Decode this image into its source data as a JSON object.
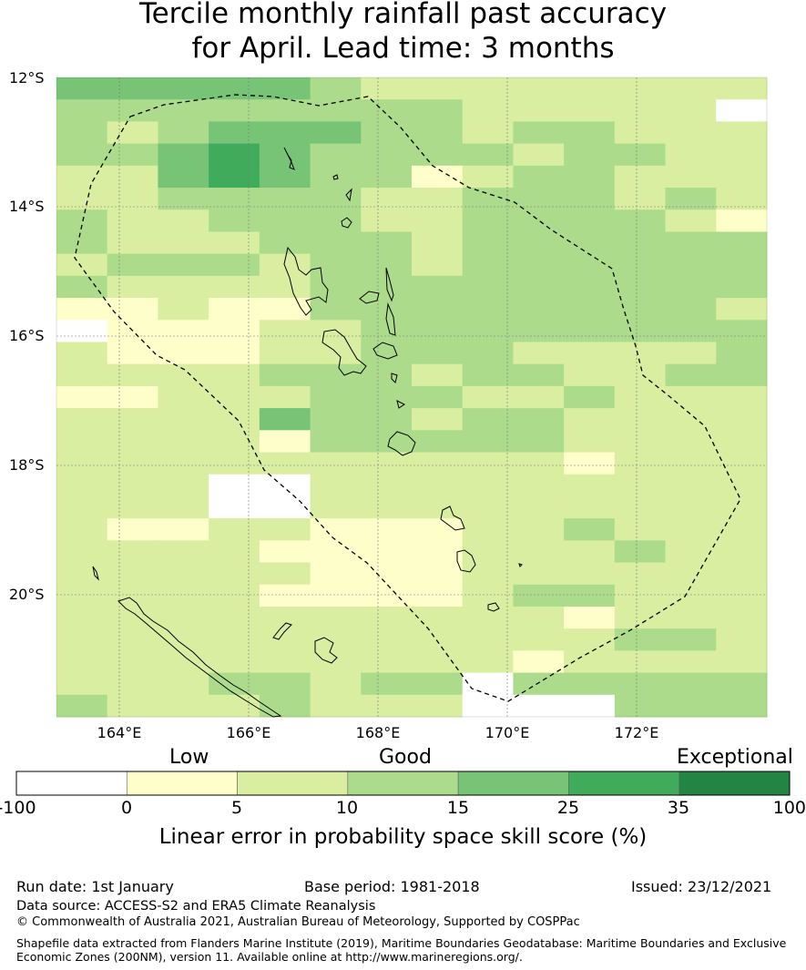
{
  "title": {
    "line1": "Tercile monthly rainfall past accuracy",
    "line2": "for April. Lead time: 3 months"
  },
  "map": {
    "lat_labels": [
      "12°S",
      "14°S",
      "16°S",
      "18°S",
      "20°S"
    ],
    "lon_labels": [
      "164°E",
      "166°E",
      "168°E",
      "170°E",
      "172°E"
    ],
    "lon_range": [
      163,
      174
    ],
    "lat_range": [
      -12,
      -21.9
    ],
    "eez_boundary": "Vanuatu EEZ",
    "grid_classes": [
      "44444322222222",
      "33333333222220",
      "32344433233222",
      "33454333323322",
      "22454331233222",
      "22333322333232",
      "32233322333321",
      "32223332333333",
      "23332332333333",
      "32222333333333",
      "11211333333332",
      "01112233333333",
      "21112233322223",
      "22223332332233",
      "11222333223222",
      "22224332332222",
      "22221333332222",
      "22222222221222",
      "22200222222222",
      "22200222222222",
      "21122111223222",
      "22221111222322",
      "22222111222222",
      "22221111233222",
      "22222222221222",
      "22222222222332",
      "22222222212222",
      "22233233033333",
      "32223222000333"
    ]
  },
  "colorbar": {
    "categories": [
      "Low",
      "Good",
      "Exceptional"
    ],
    "ticks": [
      "-100",
      "0",
      "5",
      "10",
      "15",
      "25",
      "35",
      "100"
    ],
    "colors": [
      "#ffffff",
      "#fefecb",
      "#d9eea0",
      "#acdc8b",
      "#77c476",
      "#41ab5c",
      "#238443"
    ],
    "title": "Linear error in probability space skill score (%)"
  },
  "footer": {
    "run_date": "Run date: 1st January",
    "base_period": "Base period: 1981-2018",
    "issued": "Issued: 23/12/2021",
    "data_source": "Data source: ACCESS-S2 and ERA5 Climate Reanalysis",
    "copyright": "© Commonwealth of Australia 2021, Australian Bureau of Meteorology, Supported by COSPPac",
    "shapefile_line1": "Shapefile data extracted from Flanders Marine Institute (2019), Maritime Boundaries Geodatabase: Maritime Boundaries and Exclusive",
    "shapefile_line2": "Economic Zones (200NM), version 11. Available online at http://www.marineregions.org/."
  }
}
